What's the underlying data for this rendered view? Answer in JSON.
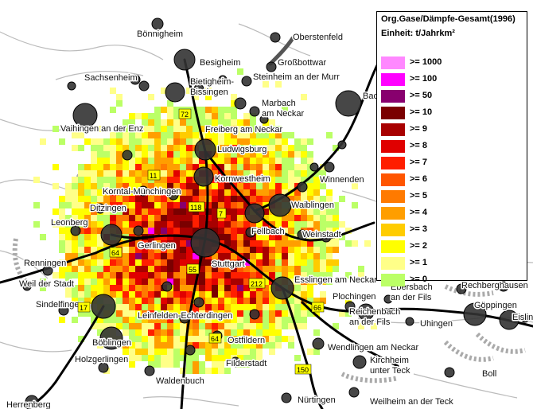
{
  "map": {
    "cities": [
      {
        "name": "Bönnigheim"
      },
      {
        "name": "Oberstenfeld"
      },
      {
        "name": "Besigheim"
      },
      {
        "name": "Großbottwar"
      },
      {
        "name": "Sachsenheim"
      },
      {
        "name": "Steinheim an der Murr"
      },
      {
        "name": "Bietigheim-"
      },
      {
        "name": "Bissingen"
      },
      {
        "name": "Marbach"
      },
      {
        "name": "am Neckar"
      },
      {
        "name": "Vaihingen an der Enz"
      },
      {
        "name": "Freiberg am Neckar"
      },
      {
        "name": "Ludwigsburg"
      },
      {
        "name": "Kornwestheim"
      },
      {
        "name": "Winnenden"
      },
      {
        "name": "Korntal-Münchingen"
      },
      {
        "name": "Ditzingen"
      },
      {
        "name": "Waiblingen"
      },
      {
        "name": "Leonberg"
      },
      {
        "name": "Gerlingen"
      },
      {
        "name": "Fellbach"
      },
      {
        "name": "Weinstadt"
      },
      {
        "name": "Renningen"
      },
      {
        "name": "Stuttgart"
      },
      {
        "name": "Esslingen am Neckar"
      },
      {
        "name": "Weil der Stadt"
      },
      {
        "name": "Ebersbach"
      },
      {
        "name": "an der Fils"
      },
      {
        "name": "Rechberghausen"
      },
      {
        "name": "Sindelfingen"
      },
      {
        "name": "Plochingen"
      },
      {
        "name": "Göppingen"
      },
      {
        "name": "Leinfelden-Echterdingen"
      },
      {
        "name": "Reichenbach"
      },
      {
        "name": "an der Fils"
      },
      {
        "name": "Uhingen"
      },
      {
        "name": "Eislingen"
      },
      {
        "name": "Böblingen"
      },
      {
        "name": "Ostfildern"
      },
      {
        "name": "Wendlingen am Neckar"
      },
      {
        "name": "Holzgerlingen"
      },
      {
        "name": "Filderstadt"
      },
      {
        "name": "Kirchheim"
      },
      {
        "name": "unter Teck"
      },
      {
        "name": "Waldenbuch"
      },
      {
        "name": "Boll"
      },
      {
        "name": "Nürtingen"
      },
      {
        "name": "Weilheim an der Teck"
      },
      {
        "name": "Herrenberg"
      },
      {
        "name": "Backnang"
      }
    ],
    "road_markers": [
      "72",
      "11",
      "118",
      "7",
      "64",
      "55",
      "212",
      "17",
      "66",
      "64",
      "150"
    ]
  },
  "legend": {
    "title": "Org.Gase/Dämpfe-Gesamt(1996)",
    "unit_label": "Einheit: t/Jahrkm²",
    "items": [
      {
        "label": ">= 1000",
        "color": "#ff88ff"
      },
      {
        "label": ">= 100",
        "color": "#ff00ff"
      },
      {
        "label": ">= 50",
        "color": "#88006e"
      },
      {
        "label": ">= 10",
        "color": "#7a0000"
      },
      {
        "label": ">= 9",
        "color": "#a80000"
      },
      {
        "label": ">= 8",
        "color": "#e00000"
      },
      {
        "label": ">= 7",
        "color": "#ff1e00"
      },
      {
        "label": ">= 6",
        "color": "#ff5500"
      },
      {
        "label": ">= 5",
        "color": "#ff7a00"
      },
      {
        "label": ">= 4",
        "color": "#ff9e00"
      },
      {
        "label": ">= 3",
        "color": "#ffcc00"
      },
      {
        "label": ">= 2",
        "color": "#ffff00"
      },
      {
        "label": ">= 1",
        "color": "#ffff88"
      },
      {
        "label": ">= 0",
        "color": "#bbff66"
      }
    ]
  }
}
